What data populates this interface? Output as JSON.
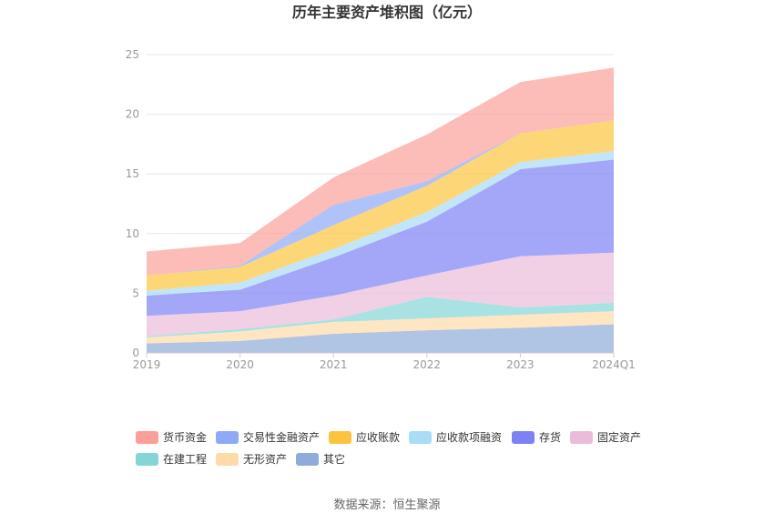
{
  "chart_data": {
    "type": "area",
    "stacked": true,
    "title": "历年主要资产堆积图（亿元）",
    "x": [
      "2019",
      "2020",
      "2021",
      "2022",
      "2023",
      "2024Q1"
    ],
    "ylim": [
      0,
      25
    ],
    "yticks": [
      0,
      5,
      10,
      15,
      20,
      25
    ],
    "grid": true,
    "legend_position": "bottom",
    "series": [
      {
        "name": "其它",
        "color": "#8fabd9",
        "values": [
          0.8,
          1.0,
          1.6,
          1.9,
          2.1,
          2.4
        ]
      },
      {
        "name": "无形资产",
        "color": "#fedba8",
        "values": [
          0.5,
          0.8,
          1.0,
          1.0,
          1.1,
          1.1
        ]
      },
      {
        "name": "在建工程",
        "color": "#84d5d5",
        "values": [
          0.1,
          0.2,
          0.2,
          1.8,
          0.6,
          0.7
        ]
      },
      {
        "name": "固定资产",
        "color": "#ebbcda",
        "values": [
          1.7,
          1.5,
          2.0,
          1.8,
          4.3,
          4.2
        ]
      },
      {
        "name": "存货",
        "color": "#7d81f3",
        "values": [
          1.7,
          1.8,
          3.2,
          4.5,
          7.3,
          7.8
        ]
      },
      {
        "name": "应收款项融资",
        "color": "#a8dcf7",
        "values": [
          0.4,
          0.6,
          0.7,
          0.8,
          0.6,
          0.7
        ]
      },
      {
        "name": "应收账款",
        "color": "#fcc43e",
        "values": [
          1.3,
          1.3,
          2.0,
          2.2,
          2.4,
          2.6
        ]
      },
      {
        "name": "交易性金融资产",
        "color": "#8ea9f5",
        "values": [
          0.0,
          0.1,
          1.7,
          0.4,
          0.0,
          0.0
        ]
      },
      {
        "name": "货币资金",
        "color": "#fb9f98",
        "values": [
          2.0,
          1.9,
          2.3,
          3.9,
          4.3,
          4.4
        ]
      }
    ],
    "legend_order": [
      "货币资金",
      "交易性金融资产",
      "应收账款",
      "应收款项融资",
      "存货",
      "固定资产",
      "在建工程",
      "无形资产",
      "其它"
    ],
    "source": "数据来源：恒生聚源"
  }
}
